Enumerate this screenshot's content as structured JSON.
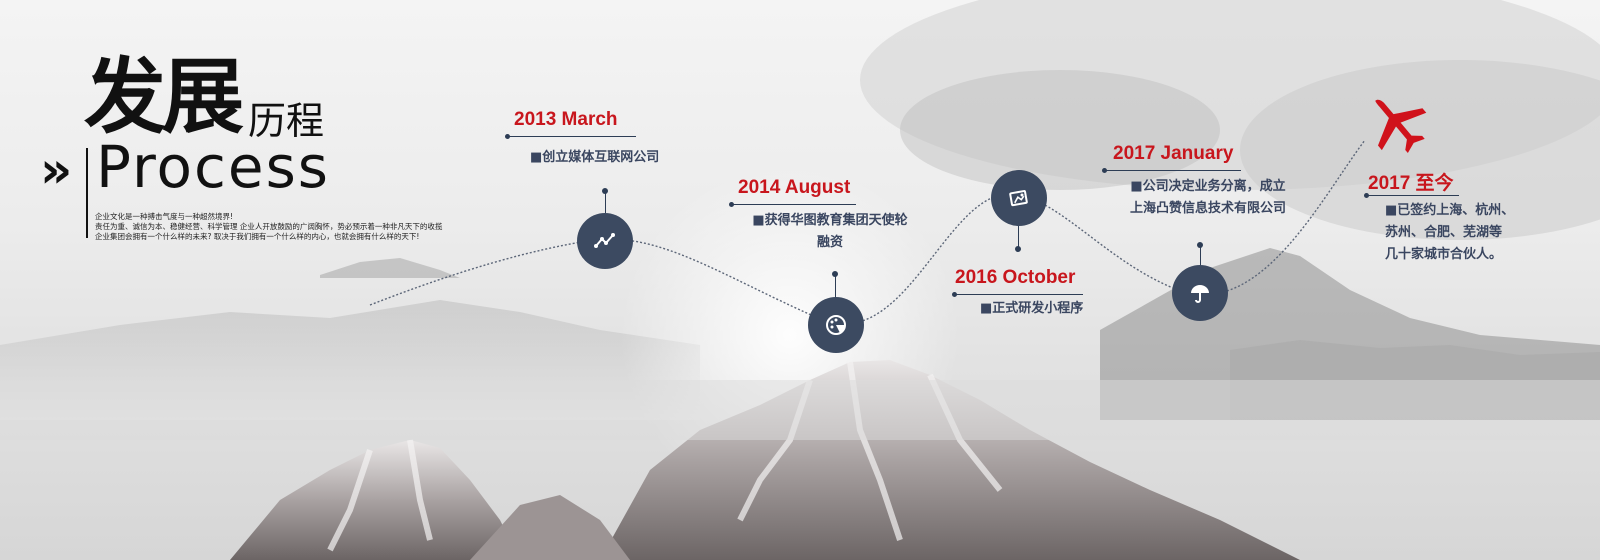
{
  "header": {
    "title_big": "发展",
    "title_small": "历程",
    "title_en": "Process",
    "intro": [
      "企业文化是一种搏击气度与一种超然境界!",
      "责任为重、诚信为本、稳健经营、科学管理 企业人开放鼓励的广阔胸怀，势必预示着一种非凡天下的收揽",
      "企业集团会拥有一个什么样的未来? 取决于我们拥有一个什么样的内心，也就会拥有什么样的天下!"
    ]
  },
  "milestones": [
    {
      "date": "2013  March",
      "lines": [
        "■创立媒体互联网公司"
      ],
      "icon": "line-chart-icon"
    },
    {
      "date": "2014 August",
      "lines": [
        "■获得华图教育集团天使轮",
        "融资"
      ],
      "icon": "pizza-icon"
    },
    {
      "date": "2016 October",
      "lines": [
        "■正式研发小程序"
      ],
      "icon": "photos-icon"
    },
    {
      "date": "2017 January",
      "lines": [
        "■公司决定业务分离，成立",
        "上海凸赞信息技术有限公司"
      ],
      "icon": "umbrella-icon"
    },
    {
      "date": "2017 至今",
      "lines": [
        "■已签约上海、杭州、",
        "苏州、合肥、芜湖等",
        "几十家城市合伙人。"
      ],
      "icon": "airplane-icon"
    }
  ],
  "colors": {
    "accent": "#c8161d",
    "node": "#3c4a61",
    "text": "#3a4660"
  }
}
